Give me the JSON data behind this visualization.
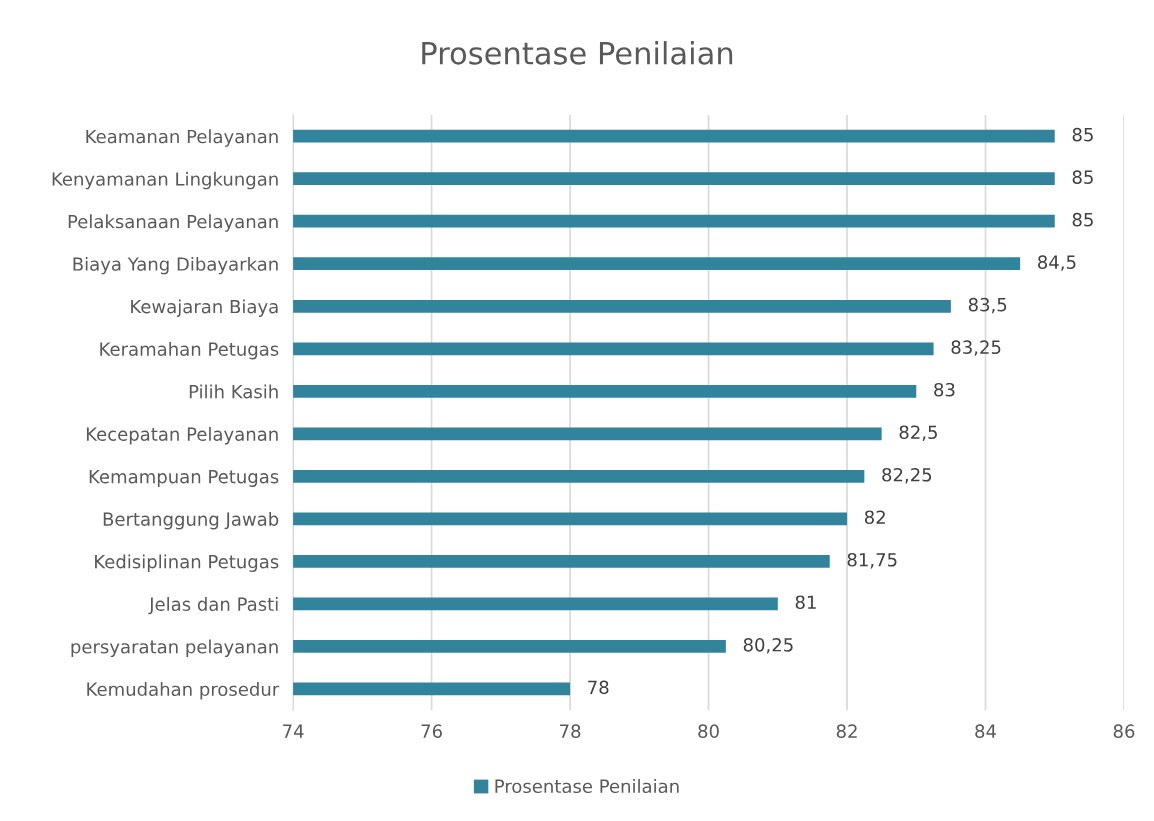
{
  "chart_data": {
    "type": "bar",
    "orientation": "horizontal",
    "title": "Prosentase Penilaian",
    "categories": [
      "Keamanan Pelayanan",
      "Kenyamanan Lingkungan",
      "Pelaksanaan Pelayanan",
      "Biaya Yang Dibayarkan",
      "Kewajaran Biaya",
      "Keramahan Petugas",
      "Pilih Kasih",
      "Kecepatan Pelayanan",
      "Kemampuan Petugas",
      "Bertanggung Jawab",
      "Kedisiplinan Petugas",
      "Jelas dan Pasti",
      "persyaratan pelayanan",
      "Kemudahan prosedur"
    ],
    "series": [
      {
        "name": "Prosentase Penilaian",
        "color": "#31849b",
        "values": [
          85,
          85,
          85,
          84.5,
          83.5,
          83.25,
          83,
          82.5,
          82.25,
          82,
          81.75,
          81,
          80.25,
          78
        ],
        "value_labels": [
          "85",
          "85",
          "85",
          "84,5",
          "83,5",
          "83,25",
          "83",
          "82,5",
          "82,25",
          "82",
          "81,75",
          "81",
          "80,25",
          "78"
        ]
      }
    ],
    "xlim": [
      74,
      86
    ],
    "xticks": [
      74,
      76,
      78,
      80,
      82,
      84,
      86
    ],
    "grid": "x",
    "legend": "bottom"
  }
}
